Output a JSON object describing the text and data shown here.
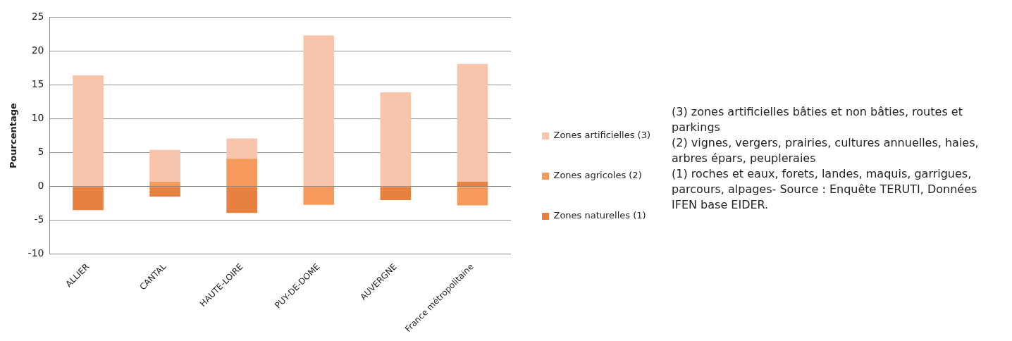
{
  "chart_data": {
    "type": "bar",
    "stacked": true,
    "ylabel": "Pourcentage",
    "categories": [
      "ALLIER",
      "CANTAL",
      "HAUTE-LOIRE",
      "PUY-DE-DOME",
      "AUVERGNE",
      "France métropolitaine"
    ],
    "series": [
      {
        "name": "Zones naturelles (1)",
        "color": "#e8803f",
        "values": [
          -3.5,
          -1.5,
          -3.9,
          -0.2,
          -2.0,
          0.7
        ]
      },
      {
        "name": "Zones agricoles (2)",
        "color": "#f59a5a",
        "values": [
          0,
          0.7,
          4.1,
          -2.5,
          0,
          -2.8
        ]
      },
      {
        "name": "Zones artificielles (3)",
        "color": "#f8c4ab",
        "values": [
          16.4,
          4.7,
          3.0,
          22.3,
          13.9,
          17.4
        ]
      }
    ],
    "ylim": [
      -10,
      25
    ],
    "yticks": [
      -10,
      -5,
      0,
      5,
      10,
      15,
      20,
      25
    ],
    "grid": "y",
    "legend": "right",
    "annotations": [
      "(3) zones artificielles bâties et non bâties, routes et parkings",
      "(2) vignes, vergers, prairies, cultures annuelles, haies, arbres épars, peupleraies",
      "(1) roches et eaux, forets, landes, maquis, garrigues, parcours, alpages- Source : Enquête TERUTI, Données IFEN base EIDER."
    ]
  }
}
